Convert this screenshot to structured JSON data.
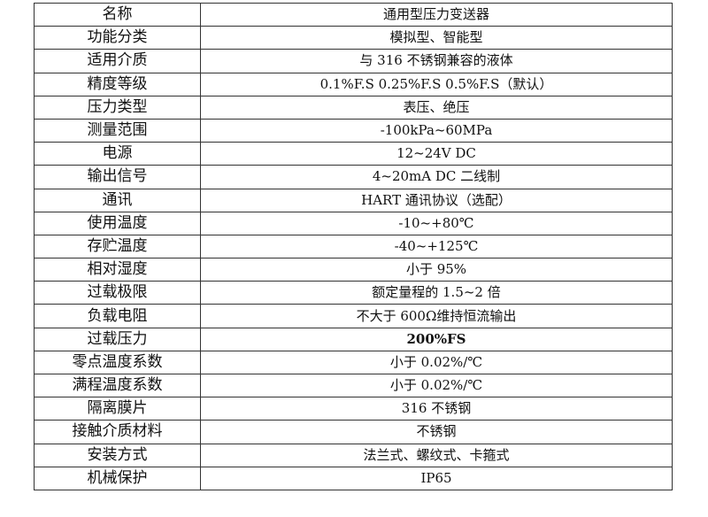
{
  "rows": [
    {
      "label": "名称",
      "value": "通用型压力变送器"
    },
    {
      "label": "功能分类",
      "value": "模拟型、智能型"
    },
    {
      "label": "适用介质",
      "value": "与 316 不锈钢兼容的液体"
    },
    {
      "label": "精度等级",
      "value": "0.1%F.S 0.25%F.S 0.5%F.S（默认）"
    },
    {
      "label": "压力类型",
      "value": "表压、绝压"
    },
    {
      "label": "测量范围",
      "value": "-100kPa~60MPa"
    },
    {
      "label": "电源",
      "value": "12~24V DC"
    },
    {
      "label": "输出信号",
      "value": "4~20mA DC  二线制"
    },
    {
      "label": "通讯",
      "value": "HART 通讯协议（选配）"
    },
    {
      "label": "使用温度",
      "value": "-10~+80℃"
    },
    {
      "label": "存贮温度",
      "value": "-40~+125℃"
    },
    {
      "label": "相对湿度",
      "value": "小于 95%"
    },
    {
      "label": "过载极限",
      "value": "额定量程的 1.5~2 倍"
    },
    {
      "label": "负载电阻",
      "value": "不大于 600Ω维持恒流输出"
    },
    {
      "label": "过载压力",
      "value": "200%FS"
    },
    {
      "label": "零点温度系数",
      "value": "小于 0.02%/℃"
    },
    {
      "label": "满程温度系数",
      "value": "小于 0.02%/℃"
    },
    {
      "label": "隔离膜片",
      "value": "316 不锈钢"
    },
    {
      "label": "接触介质材料",
      "value": "不锈钢"
    },
    {
      "label": "安装方式",
      "value": "法兰式、螺纹式、卡箍式"
    },
    {
      "label": "机械保护",
      "value": "IP65"
    }
  ]
}
